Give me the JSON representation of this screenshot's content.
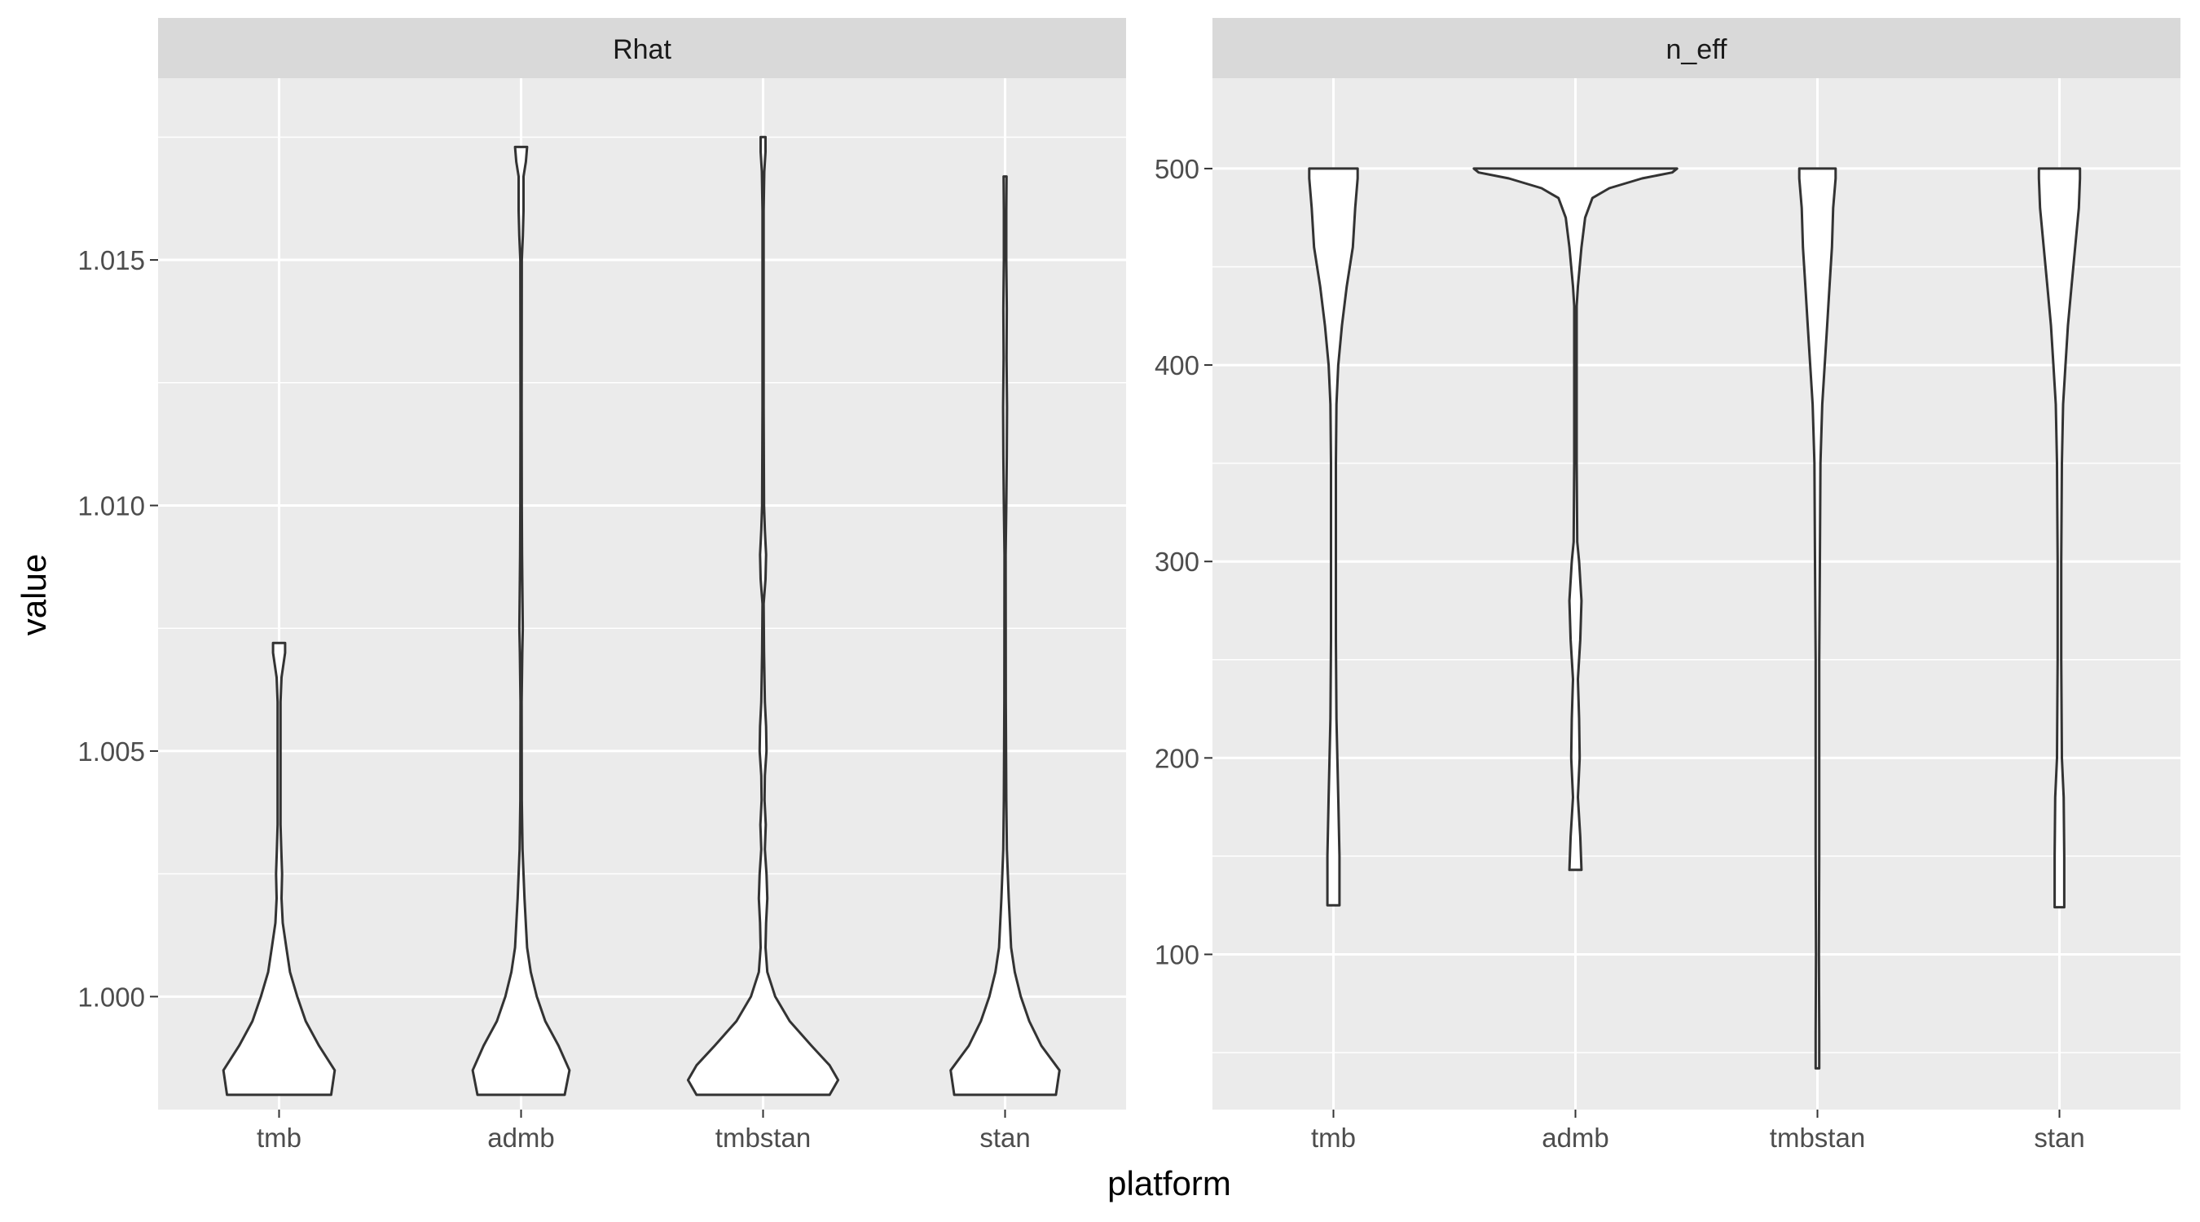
{
  "chart_data": {
    "type": "violin",
    "xlabel": "platform",
    "ylabel": "value",
    "categories": [
      "tmb",
      "admb",
      "tmbstan",
      "stan"
    ],
    "facets": [
      {
        "strip_label": "Rhat",
        "ylim": [
          0.9977,
          1.0187
        ],
        "ticks": [
          1.0,
          1.005,
          1.01,
          1.015
        ],
        "tick_labels": [
          "1.000",
          "1.005",
          "1.010",
          "1.015"
        ],
        "violins": [
          {
            "category": "tmb",
            "min": 0.998,
            "max": 1.0072,
            "profile": [
              [
                0.998,
                0.43
              ],
              [
                0.9985,
                0.46
              ],
              [
                0.999,
                0.33
              ],
              [
                0.9995,
                0.22
              ],
              [
                1.0,
                0.15
              ],
              [
                1.0005,
                0.09
              ],
              [
                1.001,
                0.06
              ],
              [
                1.0015,
                0.03
              ],
              [
                1.002,
                0.02
              ],
              [
                1.0025,
                0.025
              ],
              [
                1.003,
                0.018
              ],
              [
                1.0035,
                0.012
              ],
              [
                1.004,
                0.012
              ],
              [
                1.005,
                0.012
              ],
              [
                1.006,
                0.012
              ],
              [
                1.0065,
                0.02
              ],
              [
                1.007,
                0.05
              ],
              [
                1.0072,
                0.05
              ]
            ]
          },
          {
            "category": "admb",
            "min": 0.998,
            "max": 1.0173,
            "profile": [
              [
                0.998,
                0.36
              ],
              [
                0.9985,
                0.4
              ],
              [
                0.999,
                0.31
              ],
              [
                0.9995,
                0.2
              ],
              [
                1.0,
                0.13
              ],
              [
                1.0005,
                0.08
              ],
              [
                1.001,
                0.05
              ],
              [
                1.002,
                0.028
              ],
              [
                1.003,
                0.012
              ],
              [
                1.004,
                0.006
              ],
              [
                1.006,
                0.005
              ],
              [
                1.007,
                0.01
              ],
              [
                1.0075,
                0.014
              ],
              [
                1.008,
                0.012
              ],
              [
                1.009,
                0.008
              ],
              [
                1.01,
                0.006
              ],
              [
                1.012,
                0.005
              ],
              [
                1.015,
                0.006
              ],
              [
                1.0155,
                0.015
              ],
              [
                1.016,
                0.02
              ],
              [
                1.0167,
                0.02
              ],
              [
                1.017,
                0.04
              ],
              [
                1.0173,
                0.05
              ]
            ]
          },
          {
            "category": "tmbstan",
            "min": 0.998,
            "max": 1.0175,
            "profile": [
              [
                0.998,
                0.55
              ],
              [
                0.9983,
                0.62
              ],
              [
                0.9986,
                0.55
              ],
              [
                0.999,
                0.4
              ],
              [
                0.9995,
                0.22
              ],
              [
                1.0,
                0.1
              ],
              [
                1.0005,
                0.035
              ],
              [
                1.001,
                0.02
              ],
              [
                1.0015,
                0.025
              ],
              [
                1.002,
                0.035
              ],
              [
                1.0025,
                0.028
              ],
              [
                1.003,
                0.015
              ],
              [
                1.0035,
                0.022
              ],
              [
                1.004,
                0.012
              ],
              [
                1.0045,
                0.015
              ],
              [
                1.005,
                0.028
              ],
              [
                1.0055,
                0.025
              ],
              [
                1.006,
                0.015
              ],
              [
                1.007,
                0.008
              ],
              [
                1.008,
                0.005
              ],
              [
                1.0085,
                0.02
              ],
              [
                1.009,
                0.025
              ],
              [
                1.0095,
                0.015
              ],
              [
                1.01,
                0.008
              ],
              [
                1.012,
                0.005
              ],
              [
                1.016,
                0.005
              ],
              [
                1.0168,
                0.01
              ],
              [
                1.0172,
                0.02
              ],
              [
                1.0175,
                0.02
              ]
            ]
          },
          {
            "category": "stan",
            "min": 0.998,
            "max": 1.0167,
            "profile": [
              [
                0.998,
                0.42
              ],
              [
                0.9985,
                0.45
              ],
              [
                0.999,
                0.3
              ],
              [
                0.9995,
                0.2
              ],
              [
                1.0,
                0.13
              ],
              [
                1.0005,
                0.08
              ],
              [
                1.001,
                0.05
              ],
              [
                1.002,
                0.03
              ],
              [
                1.003,
                0.015
              ],
              [
                1.004,
                0.01
              ],
              [
                1.005,
                0.008
              ],
              [
                1.006,
                0.006
              ],
              [
                1.009,
                0.005
              ],
              [
                1.01,
                0.01
              ],
              [
                1.011,
                0.014
              ],
              [
                1.012,
                0.016
              ],
              [
                1.013,
                0.012
              ],
              [
                1.014,
                0.014
              ],
              [
                1.015,
                0.01
              ],
              [
                1.016,
                0.01
              ],
              [
                1.0167,
                0.012
              ]
            ]
          }
        ]
      },
      {
        "strip_label": "n_eff",
        "ylim": [
          21,
          546
        ],
        "ticks": [
          100,
          200,
          300,
          400,
          500
        ],
        "tick_labels": [
          "100",
          "200",
          "300",
          "400",
          "500"
        ],
        "violins": [
          {
            "category": "tmb",
            "min": 125,
            "max": 500,
            "profile": [
              [
                125,
                0.05
              ],
              [
                150,
                0.05
              ],
              [
                180,
                0.04
              ],
              [
                220,
                0.025
              ],
              [
                260,
                0.02
              ],
              [
                300,
                0.02
              ],
              [
                350,
                0.02
              ],
              [
                380,
                0.025
              ],
              [
                400,
                0.04
              ],
              [
                420,
                0.07
              ],
              [
                440,
                0.11
              ],
              [
                460,
                0.16
              ],
              [
                480,
                0.18
              ],
              [
                495,
                0.2
              ],
              [
                500,
                0.2
              ]
            ]
          },
          {
            "category": "admb",
            "min": 143,
            "max": 500,
            "profile": [
              [
                143,
                0.05
              ],
              [
                160,
                0.04
              ],
              [
                180,
                0.02
              ],
              [
                200,
                0.035
              ],
              [
                220,
                0.03
              ],
              [
                240,
                0.02
              ],
              [
                260,
                0.04
              ],
              [
                280,
                0.05
              ],
              [
                300,
                0.03
              ],
              [
                310,
                0.015
              ],
              [
                350,
                0.01
              ],
              [
                400,
                0.01
              ],
              [
                430,
                0.01
              ],
              [
                440,
                0.02
              ],
              [
                460,
                0.05
              ],
              [
                475,
                0.08
              ],
              [
                485,
                0.14
              ],
              [
                490,
                0.28
              ],
              [
                495,
                0.55
              ],
              [
                498,
                0.8
              ],
              [
                500,
                0.84
              ]
            ]
          },
          {
            "category": "tmbstan",
            "min": 42,
            "max": 500,
            "profile": [
              [
                42,
                0.015
              ],
              [
                60,
                0.015
              ],
              [
                100,
                0.012
              ],
              [
                150,
                0.015
              ],
              [
                200,
                0.015
              ],
              [
                250,
                0.015
              ],
              [
                300,
                0.02
              ],
              [
                350,
                0.025
              ],
              [
                380,
                0.04
              ],
              [
                400,
                0.06
              ],
              [
                420,
                0.08
              ],
              [
                440,
                0.1
              ],
              [
                460,
                0.12
              ],
              [
                480,
                0.13
              ],
              [
                495,
                0.15
              ],
              [
                500,
                0.15
              ]
            ]
          },
          {
            "category": "stan",
            "min": 124,
            "max": 500,
            "profile": [
              [
                124,
                0.04
              ],
              [
                150,
                0.04
              ],
              [
                180,
                0.035
              ],
              [
                200,
                0.02
              ],
              [
                250,
                0.015
              ],
              [
                300,
                0.015
              ],
              [
                350,
                0.02
              ],
              [
                380,
                0.03
              ],
              [
                400,
                0.05
              ],
              [
                420,
                0.07
              ],
              [
                440,
                0.1
              ],
              [
                460,
                0.13
              ],
              [
                480,
                0.16
              ],
              [
                495,
                0.17
              ],
              [
                500,
                0.17
              ]
            ]
          }
        ]
      }
    ]
  }
}
